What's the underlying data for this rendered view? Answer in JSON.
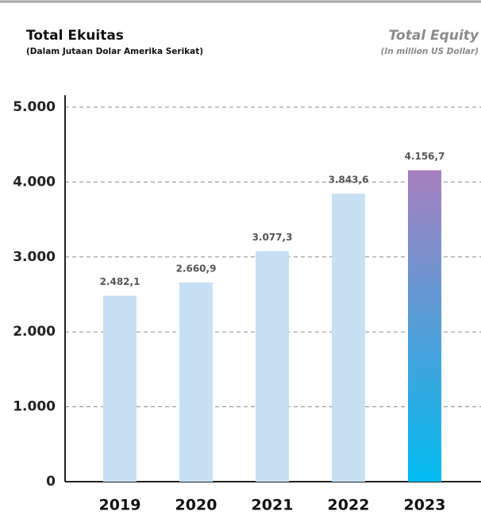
{
  "chart_data": {
    "type": "bar",
    "title": "Total Ekuitas",
    "subtitle": "(Dalam Jutaan Dolar Amerika Serikat)",
    "title_en": "Total Equity",
    "subtitle_en": "(In million US Dollar)",
    "categories": [
      "2019",
      "2020",
      "2021",
      "2022",
      "2023"
    ],
    "values": [
      2482.1,
      2660.9,
      3077.3,
      3843.6,
      4156.7
    ],
    "value_labels": [
      "2.482,1",
      "2.660,9",
      "3.077,3",
      "3.843,6",
      "4.156,7"
    ],
    "color": "#c6dff3",
    "highlight_index": 4,
    "highlight_gradient": [
      "#a77fbf",
      "#00bbef"
    ],
    "ylim": [
      0,
      5000
    ],
    "yticks": [
      0,
      {
        "value": 1000,
        "label": "1.000"
      },
      {
        "value": 2000,
        "label": "2.000"
      },
      {
        "value": 3000,
        "label": "3.000"
      },
      {
        "value": 4000,
        "label": "4.000"
      },
      {
        "value": 5000,
        "label": "5.000"
      }
    ],
    "grid": true
  }
}
